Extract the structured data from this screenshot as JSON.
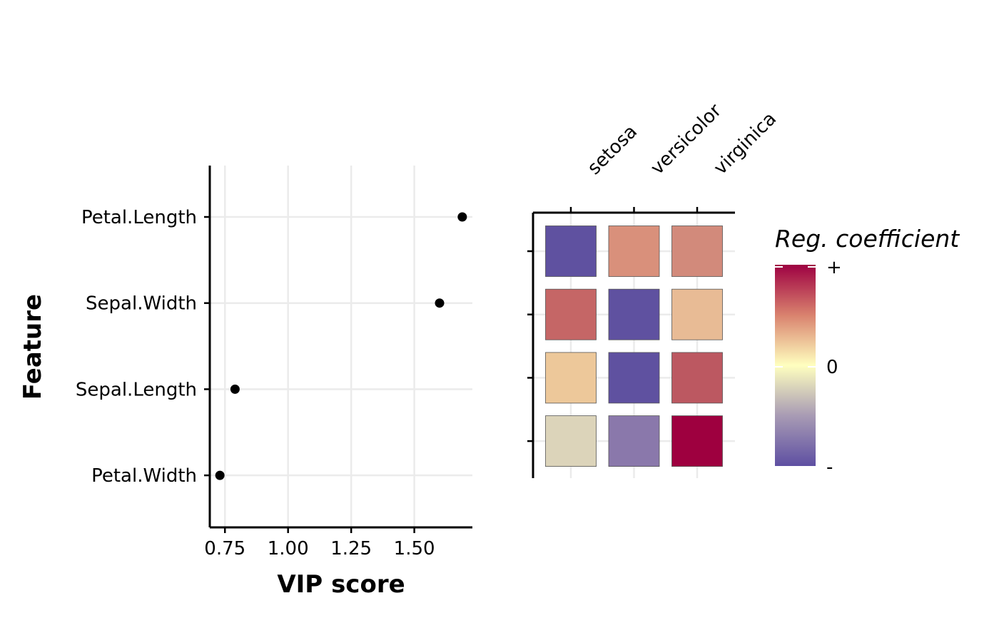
{
  "chart_data": [
    {
      "type": "scatter",
      "title": "",
      "xlabel": "VIP score",
      "ylabel": "Feature",
      "xlim": [
        0.69,
        1.73
      ],
      "xticks": [
        "0.75",
        "1.00",
        "1.25",
        "1.50"
      ],
      "xtick_values": [
        0.75,
        1.0,
        1.25,
        1.5
      ],
      "categories": [
        "Petal.Length",
        "Sepal.Width",
        "Sepal.Length",
        "Petal.Width"
      ],
      "values": [
        1.69,
        1.6,
        0.79,
        0.73
      ],
      "grid": true
    },
    {
      "type": "heatmap",
      "columns": [
        "setosa",
        "versicolor",
        "virginica"
      ],
      "rows": [
        "Petal.Length",
        "Sepal.Width",
        "Sepal.Length",
        "Petal.Width"
      ],
      "colors": [
        [
          "#5F51A0",
          "#D9907B",
          "#D28A7B"
        ],
        [
          "#C56666",
          "#5F51A0",
          "#E8BB95"
        ],
        [
          "#EDC89A",
          "#5F51A0",
          "#BC5861"
        ],
        [
          "#DCD4BA",
          "#8A78AB",
          "#9E003F"
        ]
      ],
      "legend": {
        "title": "Reg. coefficient",
        "labels": [
          "+",
          "0",
          "-"
        ],
        "colors": [
          "#9E0142",
          "#D9826E",
          "#FFFFBF",
          "#A89BB4",
          "#5E4FA2"
        ]
      }
    }
  ]
}
